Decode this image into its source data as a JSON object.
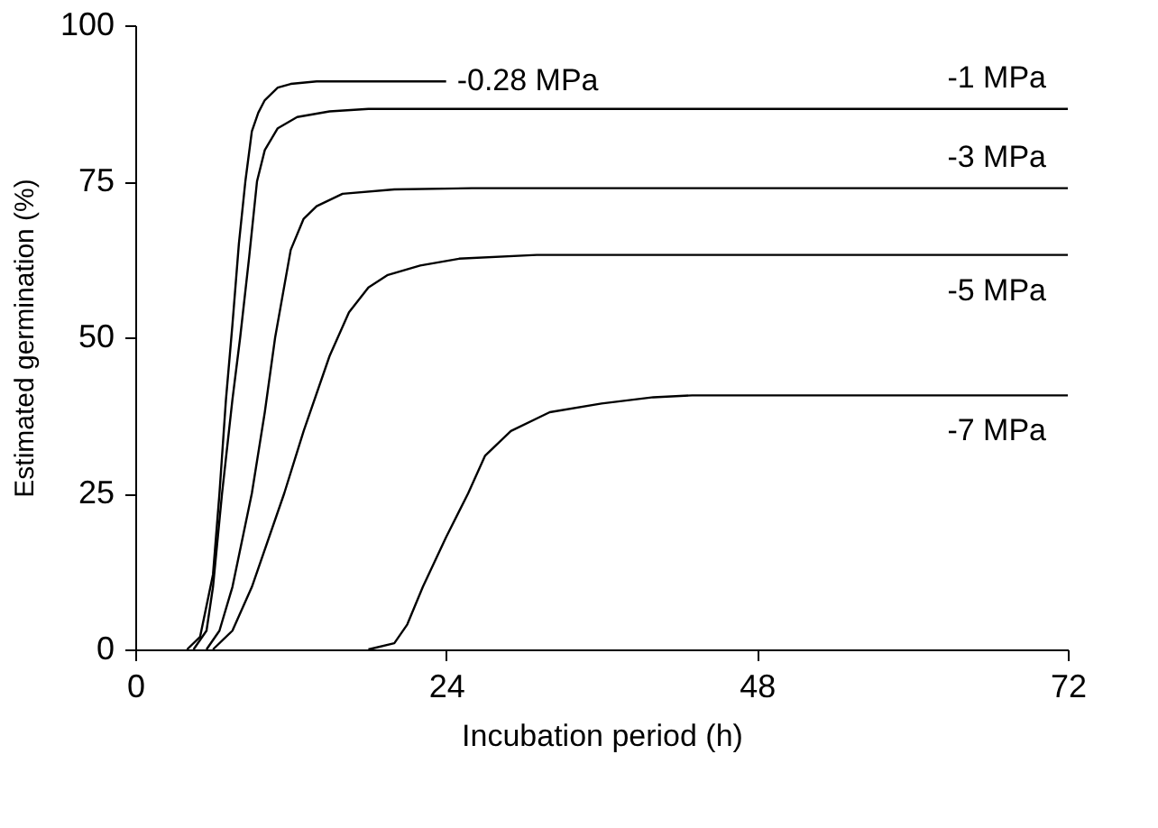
{
  "chart_data": {
    "type": "line",
    "xlabel": "Incubation period (h)",
    "ylabel": "Estimated germination (%)",
    "xlim": [
      0,
      72
    ],
    "xticks": [
      0,
      24,
      48,
      72
    ],
    "ylim": [
      0,
      100
    ],
    "yticks": [
      0,
      25,
      50,
      75,
      100
    ],
    "grid": false,
    "legend": false,
    "marker": "none",
    "line_style": "solid",
    "series": [
      {
        "name": "-0.28 MPa",
        "color": "#000000",
        "x": [
          4,
          5,
          6,
          6.5,
          7,
          7.5,
          8,
          8.5,
          9,
          9.5,
          10,
          11,
          12,
          14,
          24
        ],
        "values": [
          0,
          2,
          12,
          25,
          40,
          52,
          65,
          75,
          83,
          86,
          88,
          90,
          90.6,
          91,
          91
        ]
      },
      {
        "name": "-1 MPa",
        "color": "#000000",
        "x": [
          4.5,
          5.5,
          6,
          6.7,
          7.5,
          8.1,
          8.8,
          9.4,
          10,
          11,
          12.5,
          15,
          18,
          72
        ],
        "values": [
          0,
          3,
          10,
          25,
          40,
          50,
          63,
          75,
          80,
          83.5,
          85.3,
          86.2,
          86.6,
          86.6
        ]
      },
      {
        "name": "-3 MPa",
        "color": "#000000",
        "x": [
          5.5,
          6.5,
          7.5,
          9,
          10,
          10.8,
          12,
          13,
          14,
          16,
          20,
          26,
          72
        ],
        "values": [
          0,
          3,
          10,
          25,
          38,
          50,
          64,
          69,
          71,
          73,
          73.7,
          73.9,
          73.9
        ]
      },
      {
        "name": "-5 MPa",
        "color": "#000000",
        "x": [
          6,
          7.5,
          9,
          11.5,
          13,
          15,
          16.5,
          18,
          19.5,
          22,
          25,
          31,
          72
        ],
        "values": [
          0,
          3,
          10,
          25,
          35,
          47,
          54,
          58,
          60,
          61.5,
          62.6,
          63.2,
          63.2
        ]
      },
      {
        "name": "-7 MPa",
        "color": "#000000",
        "x": [
          18,
          20,
          21,
          22.2,
          24,
          25.7,
          27,
          29,
          32,
          36,
          40,
          43,
          72
        ],
        "values": [
          0,
          1,
          4,
          10,
          18,
          25,
          31,
          35,
          38,
          39.4,
          40.4,
          40.7,
          40.7
        ]
      }
    ]
  }
}
